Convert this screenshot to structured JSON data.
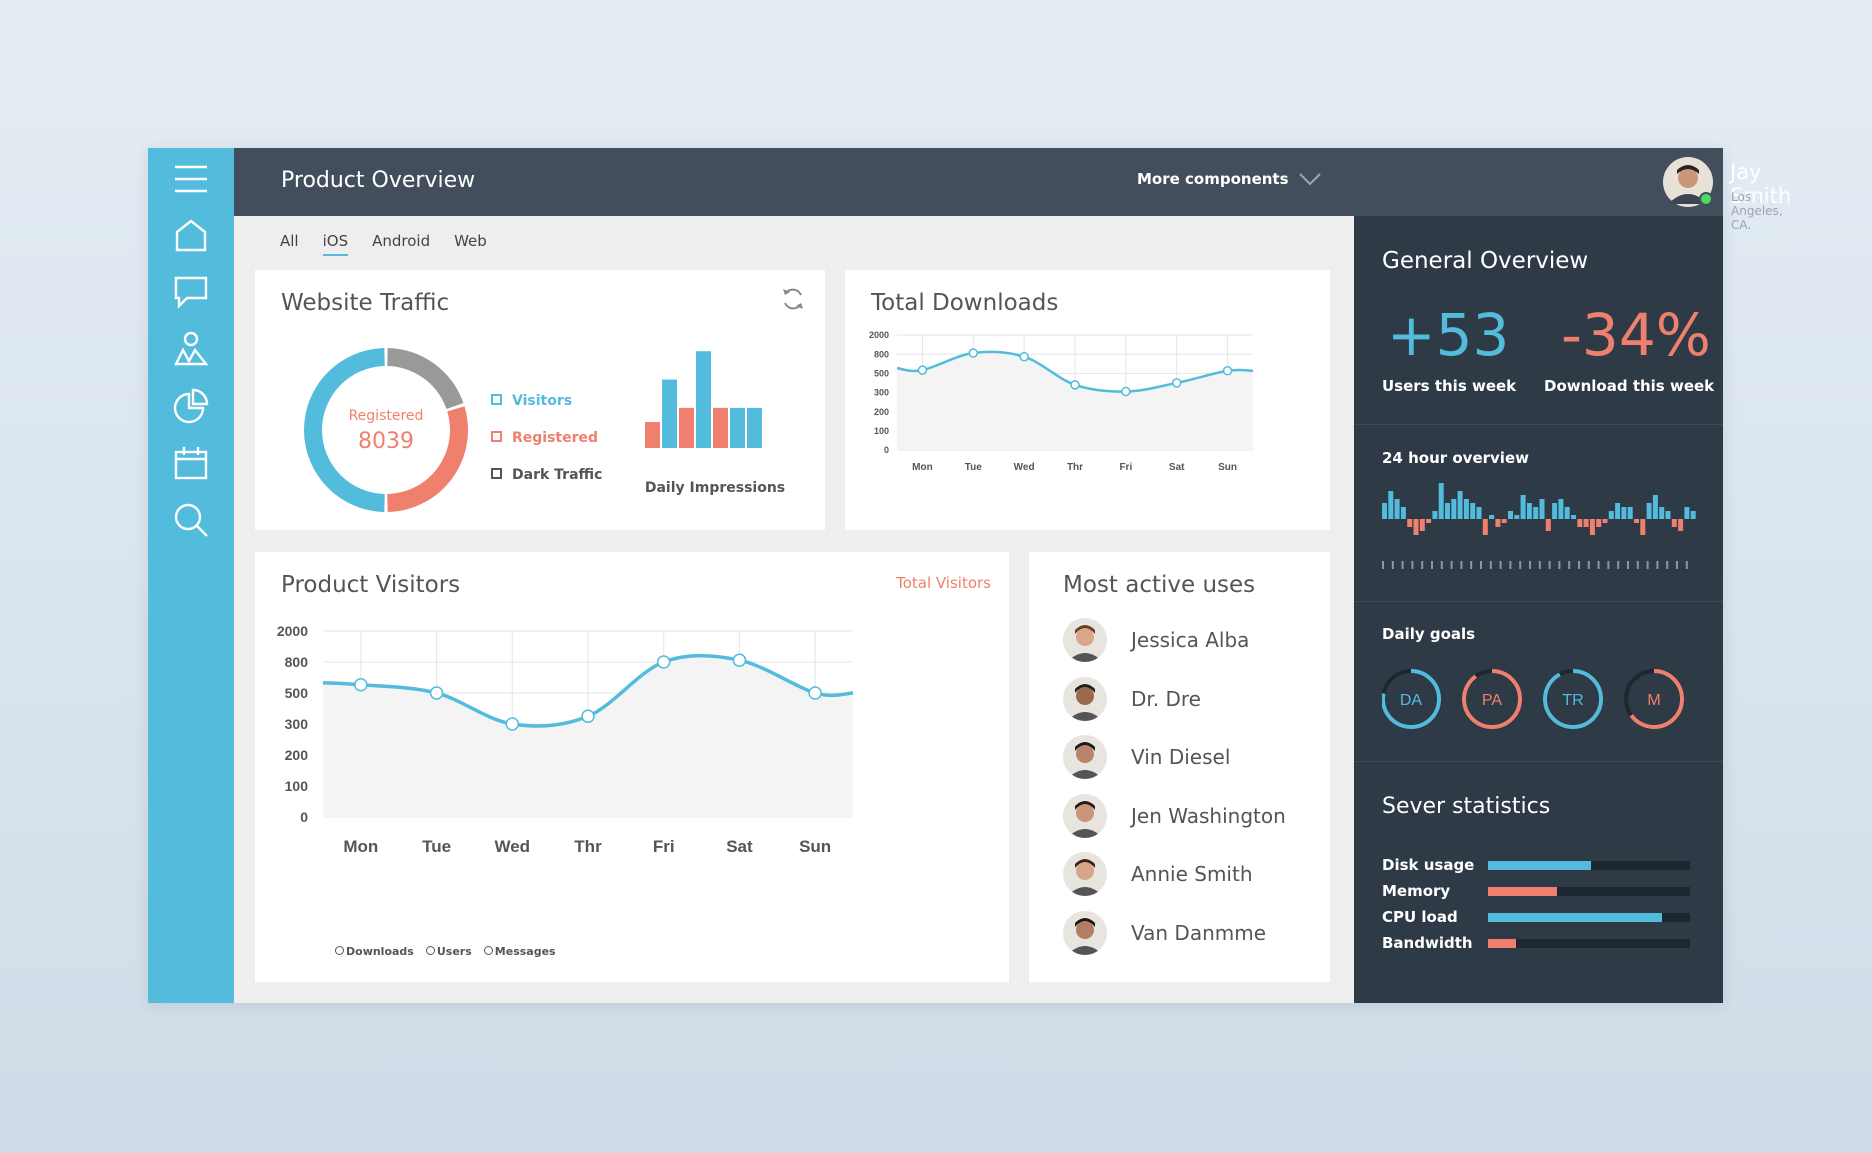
{
  "header": {
    "title": "Product Overview",
    "more_label": "More components"
  },
  "user": {
    "name": "Jay Smith",
    "location": "Los Angeles, CA.",
    "status": "online"
  },
  "sidebar": {
    "items": [
      "menu-icon",
      "home-icon",
      "chat-icon",
      "users-icon",
      "pie-chart-icon",
      "calendar-icon",
      "search-icon"
    ]
  },
  "tabs": [
    "All",
    "iOS",
    "Android",
    "Web"
  ],
  "active_tab": "iOS",
  "colors": {
    "accent": "#53bbdc",
    "salmon": "#f0806e",
    "gray": "#999999",
    "dark": "#2f3a47",
    "topbar": "#434e5c"
  },
  "website_traffic": {
    "title": "Website Traffic",
    "center_label": "Registered",
    "center_value": "8039",
    "legend": [
      "Visitors",
      "Registered",
      "Dark Traffic"
    ],
    "impressions_label": "Daily Impressions"
  },
  "total_downloads": {
    "title": "Total Downloads"
  },
  "product_visitors": {
    "title": "Product Visitors",
    "link": "Total Visitors",
    "legend": [
      "Downloads",
      "Users",
      "Messages"
    ]
  },
  "active_users": {
    "title": "Most active uses",
    "users": [
      "Jessica Alba",
      "Dr. Dre",
      "Vin Diesel",
      "Jen Washington",
      "Annie Smith",
      "Van Danmme"
    ]
  },
  "general": {
    "title": "General Overview",
    "stat1_value": "+53",
    "stat1_label": "Users this week",
    "stat2_value": "-34%",
    "stat2_label": "Download this week"
  },
  "hour24": {
    "title": "24 hour overview"
  },
  "goals": {
    "title": "Daily goals",
    "items": [
      {
        "code": "DA",
        "color": "#53bbdc",
        "value": 0.78
      },
      {
        "code": "PA",
        "color": "#f0806e",
        "value": 0.9
      },
      {
        "code": "TR",
        "color": "#53bbdc",
        "value": 0.92
      },
      {
        "code": "M",
        "color": "#f0806e",
        "value": 0.65
      }
    ]
  },
  "server": {
    "title": "Sever statistics",
    "items": [
      {
        "label": "Disk usage",
        "value": 0.51,
        "color": "#53bbdc"
      },
      {
        "label": "Memory",
        "value": 0.34,
        "color": "#f0806e"
      },
      {
        "label": "CPU load",
        "value": 0.86,
        "color": "#53bbdc"
      },
      {
        "label": "Bandwidth",
        "value": 0.14,
        "color": "#f0806e"
      }
    ]
  },
  "chart_data": [
    {
      "type": "pie",
      "title": "Website Traffic",
      "categories": [
        "Visitors",
        "Registered",
        "Dark Traffic"
      ],
      "values": [
        50,
        30,
        20
      ],
      "center_label": "Registered",
      "center_value": 8039
    },
    {
      "type": "bar",
      "title": "",
      "xlabel": "Daily Impressions",
      "categories": [
        "1",
        "2",
        "3",
        "4",
        "5",
        "6",
        "7"
      ],
      "values": [
        22,
        58,
        34,
        82,
        34,
        34,
        34
      ],
      "colors": [
        "#f0806e",
        "#53bbdc",
        "#f0806e",
        "#53bbdc",
        "#f0806e",
        "#53bbdc",
        "#53bbdc"
      ]
    },
    {
      "type": "line",
      "title": "Total Downloads",
      "categories": [
        "Mon",
        "Tue",
        "Wed",
        "Thr",
        "Fri",
        "Sat",
        "Sun"
      ],
      "yticks": [
        "2000",
        "800",
        "500",
        "300",
        "200",
        "100",
        "0"
      ],
      "series": [
        {
          "values": [
            550,
            870,
            760,
            380,
            310,
            400,
            540
          ]
        }
      ],
      "ylim": [
        0,
        2000
      ]
    },
    {
      "type": "line",
      "title": "Product Visitors",
      "categories": [
        "Mon",
        "Tue",
        "Wed",
        "Thr",
        "Fri",
        "Sat",
        "Sun"
      ],
      "yticks": [
        "2000",
        "800",
        "500",
        "300",
        "200",
        "100",
        "0"
      ],
      "series": [
        {
          "values": [
            580,
            500,
            300,
            350,
            800,
            870,
            500
          ]
        }
      ],
      "ylim": [
        0,
        2000
      ]
    },
    {
      "type": "bar",
      "title": "24 hour overview",
      "values": [
        4,
        7,
        5,
        3,
        -2,
        -4,
        -3,
        -1,
        2,
        9,
        4,
        5,
        7,
        5,
        4,
        3,
        -4,
        1,
        -2,
        -1,
        2,
        1,
        6,
        4,
        3,
        5,
        -3,
        4,
        5,
        3,
        1,
        -2,
        -2,
        -4,
        -2,
        -1,
        2,
        4,
        3,
        3,
        -1,
        -4,
        4,
        6,
        3,
        2,
        -2,
        -3,
        3,
        2
      ]
    }
  ]
}
